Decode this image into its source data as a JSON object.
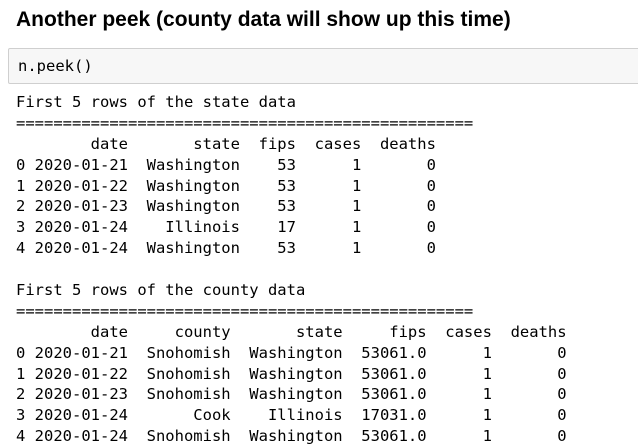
{
  "heading": "Another peek (county data will show up this time)",
  "input_cell": {
    "code": "n.peek()"
  },
  "output": {
    "lines": [
      "First 5 rows of the state data",
      "=================================================",
      "        date       state  fips  cases  deaths",
      "0 2020-01-21  Washington    53      1       0",
      "1 2020-01-22  Washington    53      1       0",
      "2 2020-01-23  Washington    53      1       0",
      "3 2020-01-24    Illinois    17      1       0",
      "4 2020-01-24  Washington    53      1       0",
      "",
      "First 5 rows of the county data",
      "=================================================",
      "        date     county       state     fips  cases  deaths",
      "0 2020-01-21  Snohomish  Washington  53061.0      1       0",
      "1 2020-01-22  Snohomish  Washington  53061.0      1       0",
      "2 2020-01-23  Snohomish  Washington  53061.0      1       0",
      "3 2020-01-24       Cook    Illinois  17031.0      1       0",
      "4 2020-01-24  Snohomish  Washington  53061.0      1       0"
    ]
  }
}
